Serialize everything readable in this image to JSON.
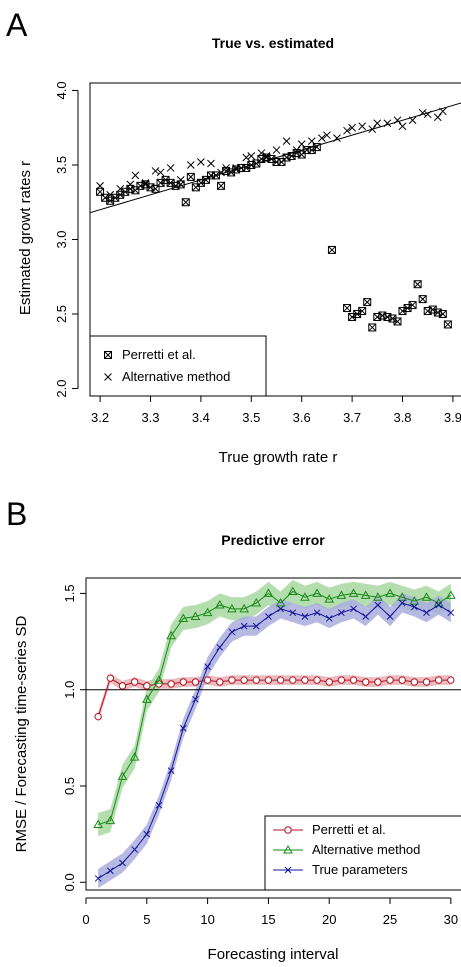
{
  "chart_data": [
    {
      "panel_label": "A",
      "type": "scatter",
      "title": "True vs. estimated",
      "xlabel": "True growth rate r",
      "ylabel": "Estimated growt rates r",
      "xlim": [
        3.18,
        3.92
      ],
      "ylim": [
        1.95,
        4.05
      ],
      "xticks": [
        "3.2",
        "3.3",
        "3.4",
        "3.5",
        "3.6",
        "3.7",
        "3.8",
        "3.9"
      ],
      "yticks": [
        "2.0",
        "2.5",
        "3.0",
        "3.5",
        "4.0"
      ],
      "legend": {
        "position": "bottom-left",
        "box": true
      },
      "reference_line": {
        "kind": "identity",
        "x": [
          3.18,
          3.92
        ],
        "y": [
          3.18,
          3.92
        ]
      },
      "series": [
        {
          "name": "Perretti et al.",
          "marker": "boxed-x",
          "x": [
            3.2,
            3.21,
            3.22,
            3.23,
            3.24,
            3.25,
            3.26,
            3.27,
            3.28,
            3.29,
            3.3,
            3.31,
            3.32,
            3.33,
            3.34,
            3.35,
            3.36,
            3.37,
            3.38,
            3.39,
            3.4,
            3.41,
            3.42,
            3.43,
            3.44,
            3.45,
            3.46,
            3.47,
            3.48,
            3.49,
            3.5,
            3.51,
            3.52,
            3.53,
            3.54,
            3.55,
            3.56,
            3.57,
            3.58,
            3.59,
            3.6,
            3.61,
            3.62,
            3.63,
            3.66,
            3.69,
            3.7,
            3.71,
            3.72,
            3.73,
            3.74,
            3.75,
            3.76,
            3.77,
            3.78,
            3.79,
            3.8,
            3.81,
            3.82,
            3.83,
            3.84,
            3.85,
            3.86,
            3.87,
            3.88,
            3.89
          ],
          "y": [
            3.32,
            3.28,
            3.26,
            3.28,
            3.3,
            3.32,
            3.34,
            3.33,
            3.36,
            3.37,
            3.35,
            3.34,
            3.38,
            3.4,
            3.38,
            3.36,
            3.37,
            3.25,
            3.42,
            3.35,
            3.38,
            3.4,
            3.43,
            3.43,
            3.36,
            3.46,
            3.45,
            3.47,
            3.48,
            3.48,
            3.5,
            3.51,
            3.54,
            3.55,
            3.54,
            3.52,
            3.52,
            3.55,
            3.56,
            3.58,
            3.57,
            3.6,
            3.6,
            3.62,
            2.93,
            2.54,
            2.48,
            2.5,
            2.52,
            2.58,
            2.41,
            2.48,
            2.49,
            2.48,
            2.47,
            2.45,
            2.52,
            2.54,
            2.56,
            2.7,
            2.6,
            2.52,
            2.53,
            2.51,
            2.5,
            2.43
          ]
        },
        {
          "name": "Alternative method",
          "marker": "x",
          "x": [
            3.2,
            3.22,
            3.24,
            3.26,
            3.27,
            3.29,
            3.31,
            3.32,
            3.34,
            3.36,
            3.38,
            3.4,
            3.42,
            3.44,
            3.45,
            3.47,
            3.49,
            3.5,
            3.52,
            3.53,
            3.55,
            3.57,
            3.59,
            3.6,
            3.62,
            3.64,
            3.65,
            3.67,
            3.69,
            3.7,
            3.72,
            3.74,
            3.75,
            3.77,
            3.79,
            3.8,
            3.82,
            3.84,
            3.85,
            3.87,
            3.88
          ],
          "y": [
            3.36,
            3.3,
            3.34,
            3.37,
            3.43,
            3.38,
            3.46,
            3.45,
            3.48,
            3.4,
            3.5,
            3.52,
            3.51,
            3.45,
            3.48,
            3.48,
            3.55,
            3.56,
            3.58,
            3.56,
            3.6,
            3.66,
            3.6,
            3.64,
            3.66,
            3.68,
            3.7,
            3.68,
            3.73,
            3.75,
            3.76,
            3.74,
            3.78,
            3.78,
            3.8,
            3.76,
            3.8,
            3.85,
            3.84,
            3.82,
            3.86
          ]
        }
      ]
    },
    {
      "panel_label": "B",
      "type": "line",
      "title": "Predictive error",
      "xlabel": "Forecasting interval",
      "ylabel": "RMSE / Forecasting time-series SD",
      "xlim": [
        0,
        31
      ],
      "ylim": [
        -0.04,
        1.58
      ],
      "xticks": [
        "0",
        "5",
        "10",
        "15",
        "20",
        "25",
        "30"
      ],
      "yticks": [
        "0.0",
        "0.5",
        "1.0",
        "1.5"
      ],
      "legend": {
        "position": "bottom-right",
        "box": true
      },
      "reference_line": {
        "kind": "horizontal",
        "y": 1.0
      },
      "x": [
        1,
        2,
        3,
        4,
        5,
        6,
        7,
        8,
        9,
        10,
        11,
        12,
        13,
        14,
        15,
        16,
        17,
        18,
        19,
        20,
        21,
        22,
        23,
        24,
        25,
        26,
        27,
        28,
        29,
        30
      ],
      "series": [
        {
          "name": "Perretti et al.",
          "color": "#b5101f",
          "band_color": "#e8b0b4",
          "marker": "circle",
          "values": [
            0.86,
            1.06,
            1.02,
            1.04,
            1.02,
            1.03,
            1.03,
            1.04,
            1.04,
            1.05,
            1.04,
            1.05,
            1.05,
            1.05,
            1.05,
            1.05,
            1.05,
            1.05,
            1.05,
            1.04,
            1.05,
            1.05,
            1.04,
            1.04,
            1.05,
            1.05,
            1.04,
            1.04,
            1.05,
            1.05
          ],
          "band": 0.025
        },
        {
          "name": "Alternative method",
          "color": "#1a8a1a",
          "band_color": "#a8d8a0",
          "marker": "triangle",
          "values": [
            0.3,
            0.32,
            0.55,
            0.65,
            0.95,
            1.05,
            1.28,
            1.37,
            1.38,
            1.4,
            1.44,
            1.42,
            1.42,
            1.45,
            1.5,
            1.45,
            1.51,
            1.48,
            1.5,
            1.47,
            1.49,
            1.5,
            1.49,
            1.48,
            1.5,
            1.48,
            1.46,
            1.48,
            1.45,
            1.49
          ],
          "band": 0.06
        },
        {
          "name": "True parameters",
          "color": "#14149a",
          "band_color": "#a9aede",
          "marker": "x",
          "values": [
            0.02,
            0.06,
            0.1,
            0.17,
            0.25,
            0.4,
            0.58,
            0.8,
            0.95,
            1.12,
            1.22,
            1.3,
            1.33,
            1.33,
            1.38,
            1.42,
            1.4,
            1.38,
            1.4,
            1.37,
            1.4,
            1.42,
            1.38,
            1.44,
            1.38,
            1.45,
            1.43,
            1.4,
            1.44,
            1.4
          ],
          "band": 0.05
        }
      ]
    }
  ]
}
